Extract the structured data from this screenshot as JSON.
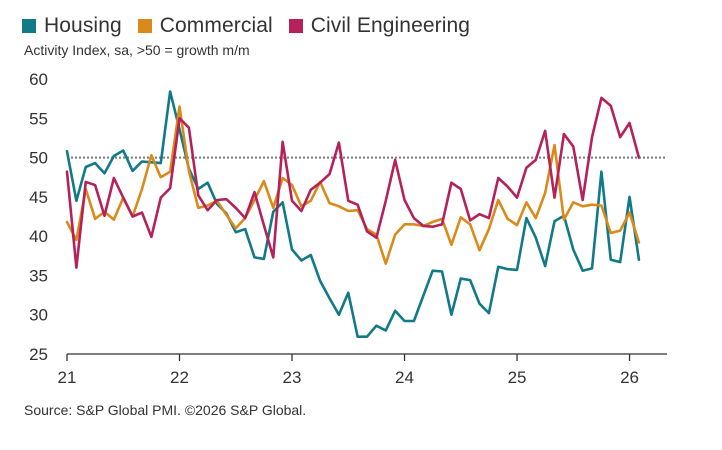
{
  "chart_data": {
    "type": "line",
    "subtitle": "Activity Index, sa, >50 = growth m/m",
    "source": "Source: S&P Global PMI. ©2026 S&P Global.",
    "ylim": [
      25,
      60
    ],
    "yticks": [
      25,
      30,
      35,
      40,
      45,
      50,
      55,
      60
    ],
    "xlim": [
      2021.0,
      2026.333
    ],
    "xticks": [
      {
        "value": 2021,
        "label": "21"
      },
      {
        "value": 2022,
        "label": "22"
      },
      {
        "value": 2023,
        "label": "23"
      },
      {
        "value": 2024,
        "label": "24"
      },
      {
        "value": 2025,
        "label": "25"
      },
      {
        "value": 2026,
        "label": "26"
      }
    ],
    "reference_line": 50,
    "x_start": "2021-01",
    "x_step": "month",
    "grid": false,
    "legend_position": "top-left",
    "series": [
      {
        "name": "Housing",
        "color": "#117a88",
        "values": [
          50.8,
          44.5,
          48.8,
          49.3,
          48.0,
          50.2,
          50.9,
          48.3,
          49.5,
          49.4,
          49.3,
          58.4,
          53.6,
          48.6,
          46.0,
          46.8,
          44.1,
          42.9,
          40.5,
          40.9,
          37.3,
          37.1,
          43.1,
          44.3,
          38.3,
          36.9,
          37.6,
          34.3,
          32.1,
          30.0,
          32.8,
          27.2,
          27.2,
          28.6,
          28.0,
          30.5,
          29.2,
          29.2,
          32.4,
          35.6,
          35.5,
          30.0,
          34.6,
          34.4,
          31.4,
          30.2,
          36.1,
          35.8,
          35.7,
          42.3,
          39.8,
          36.2,
          41.9,
          42.6,
          38.3,
          35.6,
          35.9,
          48.2,
          37.0,
          36.7,
          45.0,
          37.0
        ]
      },
      {
        "name": "Commercial",
        "color": "#d98a1a",
        "values": [
          41.8,
          39.5,
          46.0,
          42.2,
          43.1,
          42.1,
          44.9,
          42.5,
          46.0,
          50.3,
          47.5,
          48.2,
          56.5,
          48.3,
          43.6,
          43.9,
          44.5,
          42.7,
          41.0,
          42.3,
          44.6,
          47.0,
          43.6,
          47.4,
          46.5,
          43.8,
          44.5,
          46.9,
          44.2,
          43.8,
          43.2,
          43.3,
          40.9,
          40.2,
          36.5,
          40.2,
          41.5,
          41.5,
          41.3,
          41.8,
          42.2,
          38.9,
          42.4,
          41.5,
          38.2,
          40.9,
          44.6,
          42.2,
          41.4,
          44.3,
          42.3,
          45.5,
          51.6,
          42.1,
          44.3,
          43.8,
          44.0,
          43.9,
          40.4,
          40.7,
          43.0,
          39.2
        ]
      },
      {
        "name": "Civil Engineering",
        "color": "#b5215a",
        "values": [
          48.2,
          36.0,
          46.9,
          46.5,
          42.6,
          47.4,
          44.9,
          42.5,
          43.0,
          39.9,
          44.9,
          46.1,
          55.0,
          53.8,
          45.2,
          43.3,
          44.6,
          44.7,
          43.6,
          42.3,
          45.6,
          41.4,
          37.3,
          52.0,
          44.5,
          43.2,
          45.9,
          46.8,
          47.9,
          51.9,
          44.5,
          44.0,
          40.6,
          39.8,
          44.5,
          49.7,
          44.6,
          42.3,
          41.3,
          41.2,
          41.5,
          46.8,
          46.0,
          42.0,
          42.8,
          42.3,
          47.4,
          46.3,
          44.9,
          48.7,
          49.7,
          53.4,
          44.9,
          53.0,
          51.4,
          44.6,
          52.6,
          57.6,
          56.6,
          52.6,
          54.4,
          50.0
        ]
      }
    ]
  }
}
